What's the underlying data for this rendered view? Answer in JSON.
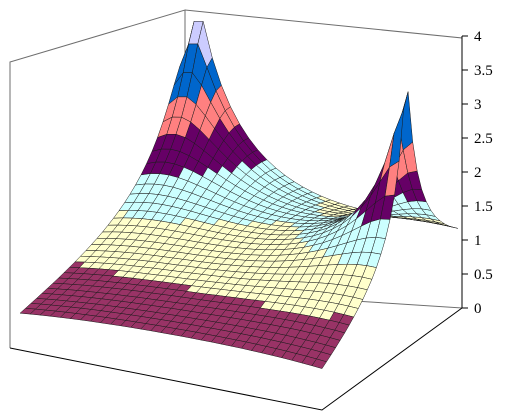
{
  "chart_data": {
    "type": "surface",
    "title": "",
    "xlabel": "",
    "ylabel": "",
    "zlabel": "",
    "zlim": [
      0,
      4
    ],
    "z_ticks": [
      "0",
      "0.5",
      "1",
      "1.5",
      "2",
      "2.5",
      "3",
      "3.5",
      "4"
    ],
    "grid": false,
    "legend": "none",
    "peaks": [
      {
        "location": "rear-left",
        "height": 4
      },
      {
        "location": "rear-right",
        "height": 3.6
      }
    ],
    "surface_shape": "concave saddle between two cusp peaks, falling to 0 at the front and side corners",
    "color_bands": [
      {
        "range": [
          0,
          0.5
        ],
        "color": "#9999ff"
      },
      {
        "range": [
          0.5,
          1
        ],
        "color": "#993366"
      },
      {
        "range": [
          1,
          1.5
        ],
        "color": "#ffffcc"
      },
      {
        "range": [
          1.5,
          2
        ],
        "color": "#ccffff"
      },
      {
        "range": [
          2,
          2.5
        ],
        "color": "#660066"
      },
      {
        "range": [
          2.5,
          3
        ],
        "color": "#ff8080"
      },
      {
        "range": [
          3,
          3.5
        ],
        "color": "#0066cc"
      },
      {
        "range": [
          3.5,
          4
        ],
        "color": "#ccccff"
      }
    ]
  }
}
